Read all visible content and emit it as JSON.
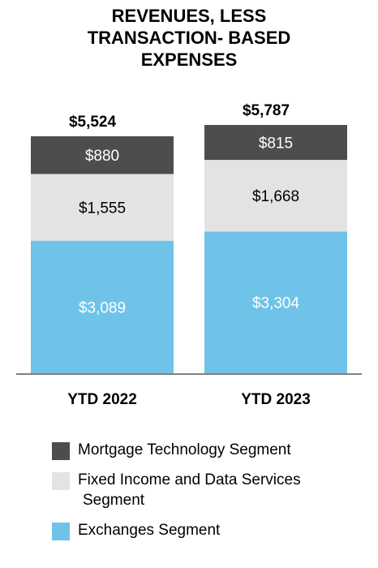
{
  "chart_data": {
    "type": "bar",
    "stacked": true,
    "title_lines": [
      "REVENUES, LESS",
      "TRANSACTION- BASED",
      "EXPENSES"
    ],
    "categories": [
      "YTD 2022",
      "YTD 2023"
    ],
    "totals": [
      5524,
      5787
    ],
    "total_labels": [
      "$5,524",
      "$5,787"
    ],
    "series": [
      {
        "name": "Exchanges Segment",
        "values": [
          3089,
          3304
        ],
        "labels": [
          "$3,089",
          "$3,304"
        ],
        "color": "#6fc3e8",
        "text_color": "#ffffff"
      },
      {
        "name": "Fixed Income and Data Services Segment",
        "values": [
          1555,
          1668
        ],
        "labels": [
          "$1,555",
          "$1,668"
        ],
        "color": "#e3e3e3",
        "text_color": "#000000"
      },
      {
        "name": "Mortgage Technology Segment",
        "values": [
          880,
          815
        ],
        "labels": [
          "$880",
          "$815"
        ],
        "color": "#4d4d4d",
        "text_color": "#ffffff"
      }
    ],
    "ylim": [
      0,
      5787
    ],
    "grid": false,
    "legend_position": "bottom"
  },
  "legend": [
    {
      "label_line1": "Mortgage Technology Segment",
      "label_line2": "",
      "color": "#4d4d4d"
    },
    {
      "label_line1": "Fixed Income and Data Services",
      "label_line2": "Segment",
      "color": "#e3e3e3"
    },
    {
      "label_line1": "Exchanges Segment",
      "label_line2": "",
      "color": "#6fc3e8"
    }
  ]
}
